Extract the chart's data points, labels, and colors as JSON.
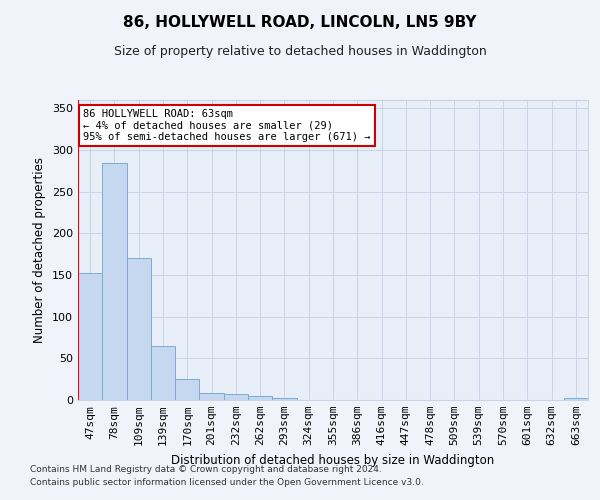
{
  "title": "86, HOLLYWELL ROAD, LINCOLN, LN5 9BY",
  "subtitle": "Size of property relative to detached houses in Waddington",
  "xlabel": "Distribution of detached houses by size in Waddington",
  "ylabel": "Number of detached properties",
  "categories": [
    "47sqm",
    "78sqm",
    "109sqm",
    "139sqm",
    "170sqm",
    "201sqm",
    "232sqm",
    "262sqm",
    "293sqm",
    "324sqm",
    "355sqm",
    "386sqm",
    "416sqm",
    "447sqm",
    "478sqm",
    "509sqm",
    "539sqm",
    "570sqm",
    "601sqm",
    "632sqm",
    "663sqm"
  ],
  "values": [
    153,
    285,
    170,
    65,
    25,
    9,
    7,
    5,
    3,
    0,
    0,
    0,
    0,
    0,
    0,
    0,
    0,
    0,
    0,
    0,
    3
  ],
  "bar_color": "#c5d8f0",
  "bar_edge_color": "#7aadd4",
  "annotation_text": "86 HOLLYWELL ROAD: 63sqm\n← 4% of detached houses are smaller (29)\n95% of semi-detached houses are larger (671) →",
  "annotation_box_color": "#ffffff",
  "annotation_box_edge": "#cc0000",
  "grid_color": "#c8d4e8",
  "background_color": "#e8eef8",
  "fig_background": "#f0f4fa",
  "ylim": [
    0,
    360
  ],
  "yticks": [
    0,
    50,
    100,
    150,
    200,
    250,
    300,
    350
  ],
  "footnote1": "Contains HM Land Registry data © Crown copyright and database right 2024.",
  "footnote2": "Contains public sector information licensed under the Open Government Licence v3.0."
}
